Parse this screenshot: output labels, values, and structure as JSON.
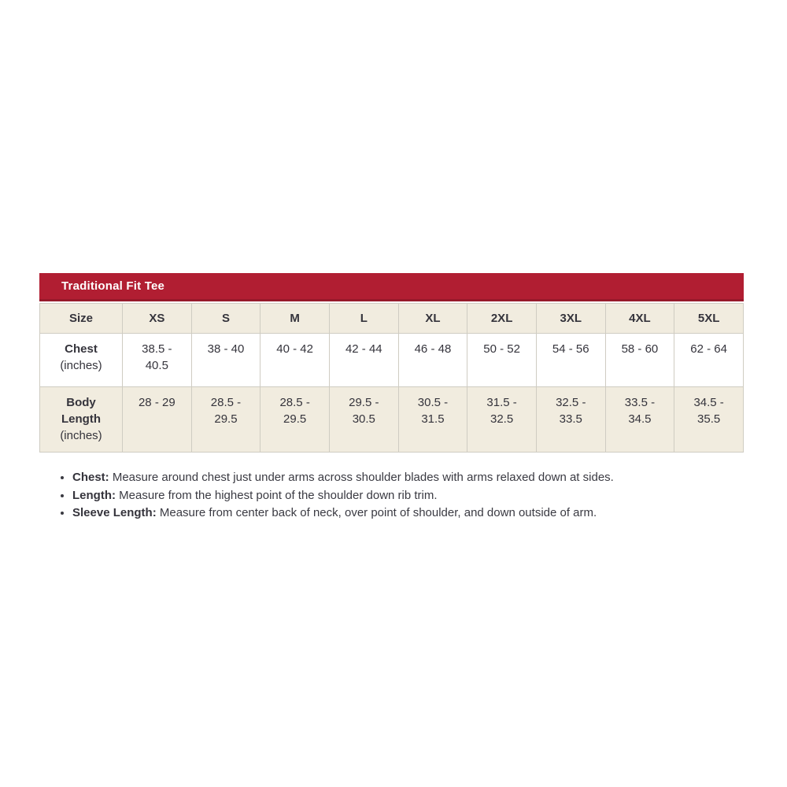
{
  "panel": {
    "title": "Traditional Fit Tee"
  },
  "colors": {
    "accent_red": "#b11e32",
    "accent_red_dark": "#97192a",
    "row_beige": "#f1ecdf",
    "border": "#cfccc2",
    "text": "#35343c"
  },
  "size_chart": {
    "columns": [
      "Size",
      "XS",
      "S",
      "M",
      "L",
      "XL",
      "2XL",
      "3XL",
      "4XL",
      "5XL"
    ],
    "rows": [
      {
        "label": "Chest",
        "unit": "(inches)",
        "values": [
          "38.5 - 40.5",
          "38 - 40",
          "40 - 42",
          "42 - 44",
          "46 - 48",
          "50 - 52",
          "54 - 56",
          "58 - 60",
          "62 - 64"
        ]
      },
      {
        "label": "Body Length",
        "unit": "(inches)",
        "values": [
          "28 - 29",
          "28.5 - 29.5",
          "28.5 - 29.5",
          "29.5 - 30.5",
          "30.5 - 31.5",
          "31.5 - 32.5",
          "32.5 - 33.5",
          "33.5 - 34.5",
          "34.5 - 35.5"
        ]
      }
    ]
  },
  "notes": [
    {
      "label": "Chest:",
      "text": "Measure around chest just under arms across shoulder blades with arms relaxed down at sides."
    },
    {
      "label": "Length:",
      "text": "Measure from the highest point of the shoulder down rib trim."
    },
    {
      "label": "Sleeve Length:",
      "text": "Measure from center back of neck, over point of shoulder, and down outside of arm."
    }
  ]
}
